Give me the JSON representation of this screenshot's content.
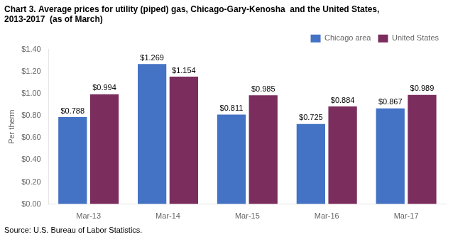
{
  "chart_data": {
    "type": "bar",
    "title": [
      "Chart 3. Average prices for utility (piped) gas, Chicago-Gary-Kenosha  and the United States,",
      "2013-2017  (as of March)"
    ],
    "ylabel": "Per therm",
    "source": "Source: U.S. Bureau of Labor Statistics.",
    "categories": [
      "Mar-13",
      "Mar-14",
      "Mar-15",
      "Mar-16",
      "Mar-17"
    ],
    "series": [
      {
        "name": "Chicago area",
        "color": "#4472C4",
        "values": [
          0.788,
          1.269,
          0.811,
          0.725,
          0.867
        ],
        "value_labels": [
          "$0.788",
          "$1.269",
          "$0.811",
          "$0.725",
          "$0.867"
        ]
      },
      {
        "name": "United States",
        "color": "#7B2D5E",
        "values": [
          0.994,
          1.154,
          0.985,
          0.884,
          0.989
        ],
        "value_labels": [
          "$0.994",
          "$1.154",
          "$0.985",
          "$0.884",
          "$0.989"
        ]
      }
    ],
    "ylim": [
      0.0,
      1.4
    ],
    "yticks": [
      {
        "value": 0.0,
        "label": "$0.00"
      },
      {
        "value": 0.2,
        "label": "$0.20"
      },
      {
        "value": 0.4,
        "label": "$0.40"
      },
      {
        "value": 0.6,
        "label": "$0.60"
      },
      {
        "value": 0.8,
        "label": "$0.80"
      },
      {
        "value": 1.0,
        "label": "$1.00"
      },
      {
        "value": 1.2,
        "label": "$1.20"
      },
      {
        "value": 1.4,
        "label": "$1.40"
      }
    ],
    "grid": false,
    "legend": "upper right",
    "data_labels": true
  }
}
